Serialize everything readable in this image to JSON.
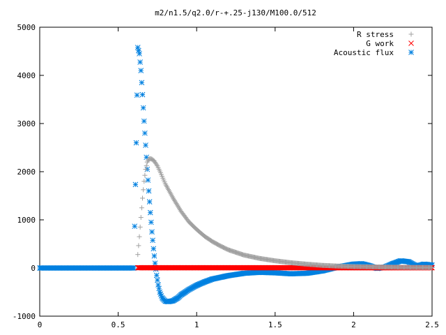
{
  "chart_data": {
    "type": "scatter",
    "title": "m2/n1.5/q2.0/r-+.25-j130/M100.0/512",
    "xlabel": "",
    "ylabel": "",
    "xlim": [
      0,
      2.5
    ],
    "ylim": [
      -1000,
      5000
    ],
    "xticks": [
      "0",
      "0.5",
      "1",
      "1.5",
      "2",
      "2.5"
    ],
    "yticks": [
      "-1000",
      "0",
      "1000",
      "2000",
      "3000",
      "4000",
      "5000"
    ],
    "grid": false,
    "legend_position": "top-right",
    "series": [
      {
        "name": "R stress",
        "marker": "plus",
        "color": "#a0a0a0",
        "x": [
          0.625,
          0.635,
          0.645,
          0.655,
          0.665,
          0.675,
          0.685,
          0.695,
          0.705,
          0.715,
          0.73,
          0.75,
          0.77,
          0.8,
          0.85,
          0.9,
          0.95,
          1.0,
          1.05,
          1.1,
          1.15,
          1.2,
          1.3,
          1.4,
          1.5,
          1.6,
          1.7,
          1.8,
          1.9,
          2.0,
          2.1,
          2.2,
          2.3,
          2.4,
          2.5
        ],
        "y": [
          280,
          650,
          1050,
          1450,
          1800,
          2050,
          2200,
          2260,
          2270,
          2260,
          2220,
          2120,
          1980,
          1750,
          1450,
          1180,
          960,
          800,
          660,
          550,
          460,
          380,
          270,
          200,
          150,
          110,
          80,
          55,
          40,
          30,
          25,
          20,
          15,
          12,
          10
        ]
      },
      {
        "name": "G work",
        "marker": "cross",
        "color": "#ff0000",
        "x": [
          0.625,
          0.8,
          1.0,
          1.2,
          1.4,
          1.6,
          1.8,
          2.0,
          2.2,
          2.4,
          2.5
        ],
        "y": [
          5,
          5,
          5,
          5,
          5,
          5,
          5,
          5,
          5,
          5,
          5
        ]
      },
      {
        "name": "Acoustic flux",
        "marker": "star",
        "color": "#0080e0",
        "x": [
          0.0,
          0.1,
          0.2,
          0.3,
          0.4,
          0.5,
          0.6,
          0.615,
          0.625,
          0.635,
          0.645,
          0.655,
          0.665,
          0.675,
          0.685,
          0.695,
          0.705,
          0.715,
          0.725,
          0.735,
          0.745,
          0.755,
          0.765,
          0.78,
          0.8,
          0.82,
          0.85,
          0.88,
          0.9,
          0.95,
          1.0,
          1.05,
          1.1,
          1.2,
          1.3,
          1.4,
          1.5,
          1.6,
          1.7,
          1.8,
          1.9,
          2.0,
          2.05,
          2.1,
          2.15,
          2.2,
          2.25,
          2.3,
          2.35,
          2.4,
          2.45,
          2.5
        ],
        "y": [
          0,
          0,
          0,
          0,
          0,
          0,
          0,
          2600,
          4580,
          4450,
          4100,
          3600,
          3050,
          2550,
          2050,
          1600,
          1150,
          750,
          400,
          100,
          -150,
          -350,
          -500,
          -620,
          -690,
          -700,
          -680,
          -620,
          -560,
          -450,
          -360,
          -290,
          -230,
          -160,
          -110,
          -90,
          -100,
          -120,
          -110,
          -60,
          20,
          80,
          90,
          50,
          -10,
          20,
          90,
          150,
          130,
          40,
          80,
          60
        ]
      }
    ]
  }
}
